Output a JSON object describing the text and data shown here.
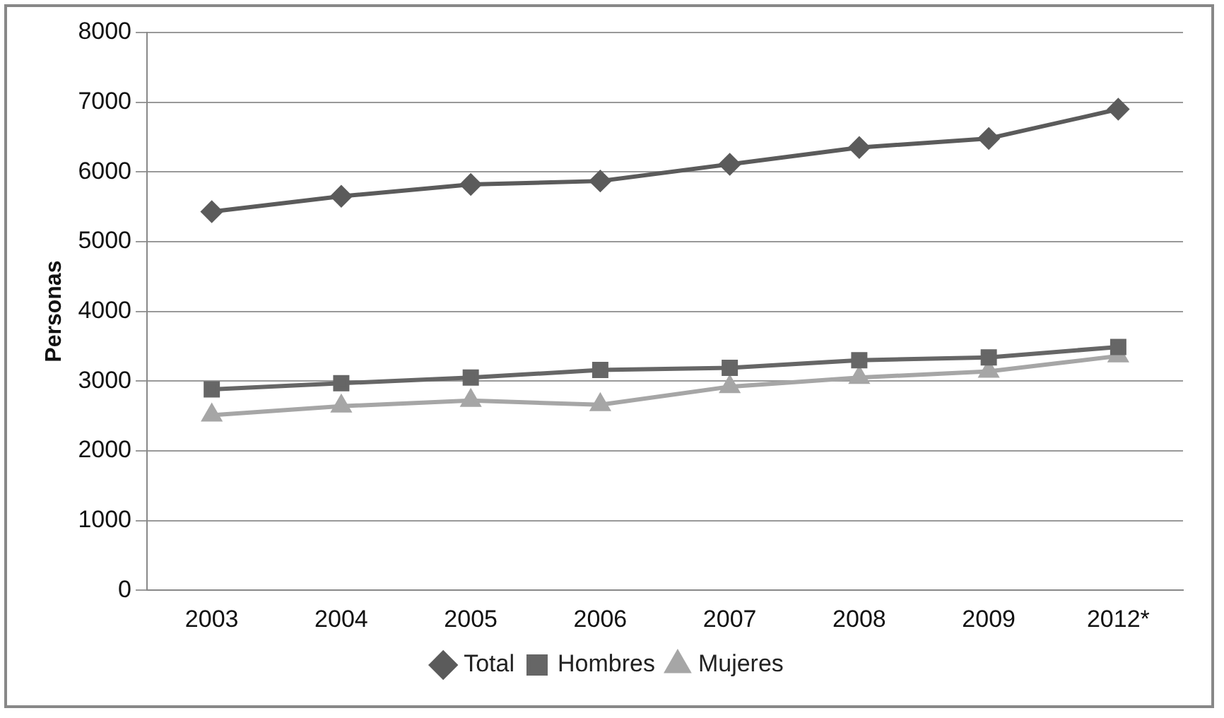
{
  "chart_data": {
    "type": "line",
    "ylabel": "Personas",
    "categories": [
      "2003",
      "2004",
      "2005",
      "2006",
      "2007",
      "2008",
      "2009",
      "2012*"
    ],
    "series": [
      {
        "name": "Total",
        "color": "#5b5b5b",
        "marker": "diamond",
        "values": [
          5430,
          5650,
          5820,
          5870,
          6110,
          6350,
          6480,
          6900
        ]
      },
      {
        "name": "Hombres",
        "color": "#666666",
        "marker": "square",
        "values": [
          2880,
          2970,
          3050,
          3160,
          3190,
          3300,
          3340,
          3490
        ]
      },
      {
        "name": "Mujeres",
        "color": "#a6a6a6",
        "marker": "triangle",
        "values": [
          2510,
          2640,
          2720,
          2660,
          2920,
          3050,
          3140,
          3360
        ]
      }
    ],
    "ylim": [
      0,
      8000
    ],
    "yticks": [
      0,
      1000,
      2000,
      3000,
      4000,
      5000,
      6000,
      7000,
      8000
    ],
    "grid": "y",
    "legend": "bottom",
    "line_style": "solid"
  }
}
